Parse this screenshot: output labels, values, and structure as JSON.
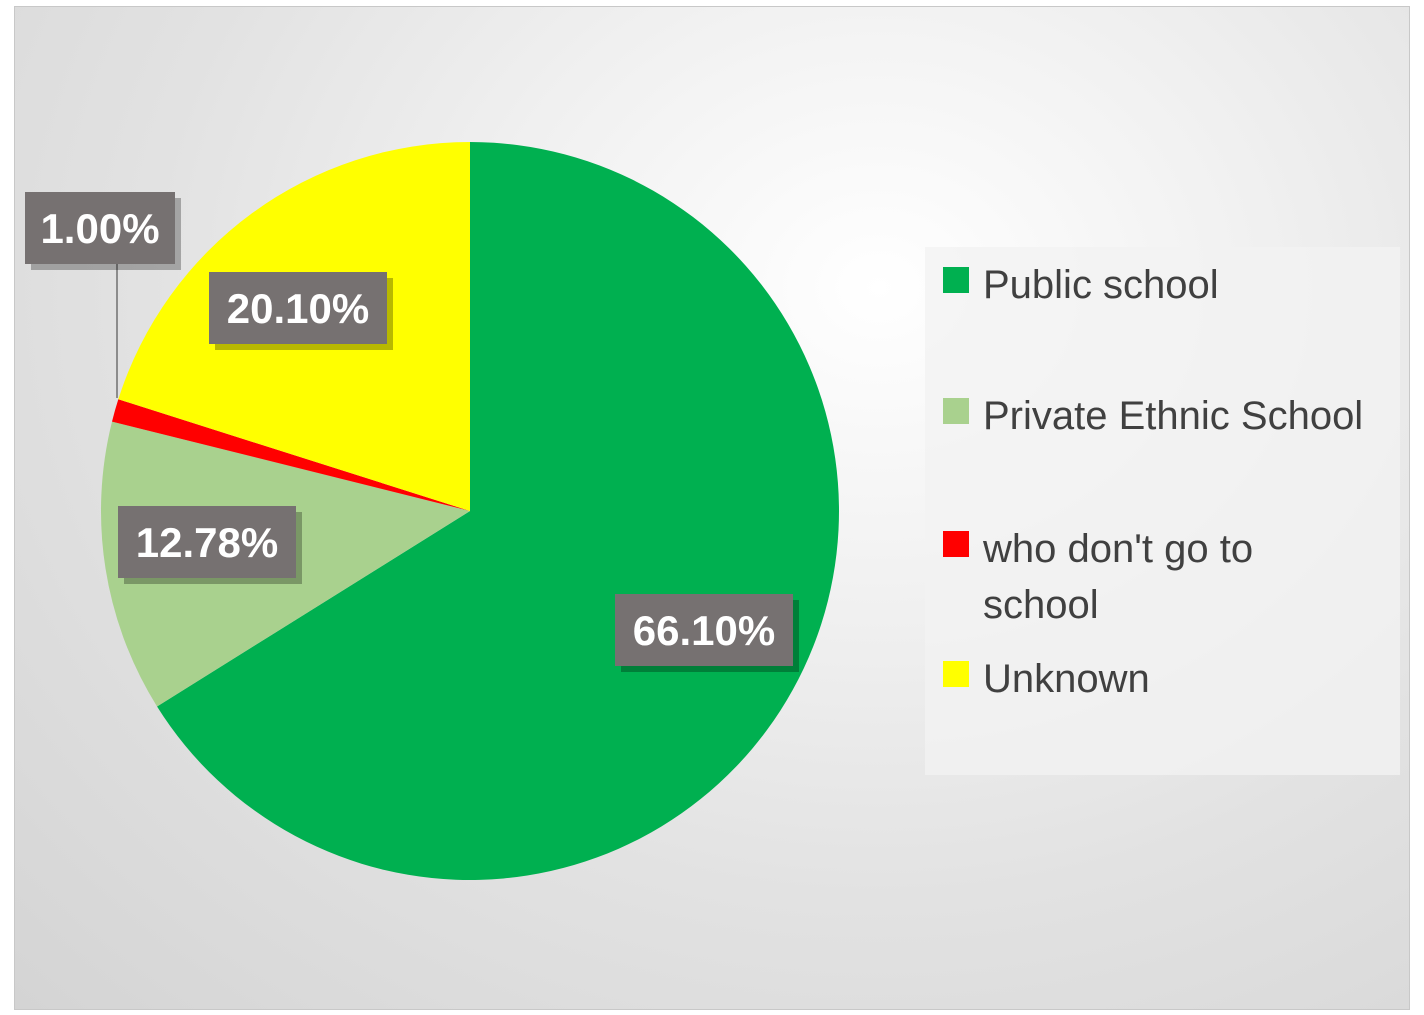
{
  "chart_data": {
    "type": "pie",
    "categories": [
      "Public school",
      "Private Ethnic School",
      "who don't go to school",
      "Unknown"
    ],
    "values": [
      66.1,
      12.78,
      1.0,
      20.1
    ],
    "data_labels": [
      "66.10%",
      "12.78%",
      "1.00%",
      "20.10%"
    ],
    "colors": [
      "#00b050",
      "#a9d18e",
      "#ff0000",
      "#ffff00"
    ],
    "start_angle_deg": 0,
    "direction": "clockwise",
    "legend_position": "right",
    "title": ""
  },
  "legend": {
    "items": [
      {
        "label": "Public school",
        "color": "#00b050"
      },
      {
        "label": "Private Ethnic School",
        "color": "#a9d18e"
      },
      {
        "label": "who don't go to school",
        "color": "#ff0000"
      },
      {
        "label": "Unknown",
        "color": "#ffff00"
      }
    ]
  }
}
